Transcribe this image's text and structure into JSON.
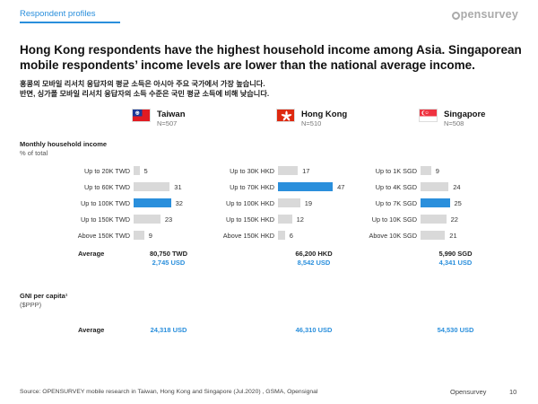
{
  "header": {
    "section_label": "Respondent profiles",
    "logo_text": "pensurvey"
  },
  "headline": "Hong Kong respondents have the highest household income among Asia. Singaporean mobile respondents’ income levels are lower than the national average income.",
  "subline": "홍콩의 모바일 리서치 응답자의 평균 소득은 아시아 주요 국가에서 가장 높습니다.\n반면, 싱가폴 모바일 리서치 응답자의 소득 수준은 국민 평균 소득에 비해 낮습니다.",
  "colors": {
    "accent": "#2a8fdc",
    "bar": "#d9d9d9"
  },
  "chart_data": {
    "type": "bar",
    "ylabel": "Monthly household income",
    "ysub": "% of total",
    "average_label": "Average",
    "gni_label": "GNI per capita¹",
    "gni_sub": "($PPP)",
    "gni_row_label": "Average",
    "series": [
      {
        "name": "Taiwan",
        "sample": "N=507",
        "flag": "taiwan-flag-icon",
        "categories": [
          "Up to 20K TWD",
          "Up to 60K TWD",
          "Up to 100K TWD",
          "Up to 150K TWD",
          "Above 150K TWD"
        ],
        "values": [
          5,
          31,
          32,
          23,
          9
        ],
        "highlight_index": 2,
        "average_local": "80,750 TWD",
        "average_usd": "2,745 USD",
        "gni": "24,318 USD"
      },
      {
        "name": "Hong Kong",
        "sample": "N=510",
        "flag": "hongkong-flag-icon",
        "categories": [
          "Up to 30K HKD",
          "Up to 70K HKD",
          "Up to 100K HKD",
          "Up to 150K HKD",
          "Above 150K HKD"
        ],
        "values": [
          17,
          47,
          19,
          12,
          6
        ],
        "highlight_index": 1,
        "average_local": "66,200 HKD",
        "average_usd": "8,542 USD",
        "gni": "46,310 USD"
      },
      {
        "name": "Singapore",
        "sample": "N=508",
        "flag": "singapore-flag-icon",
        "categories": [
          "Up to 1K SGD",
          "Up to 4K SGD",
          "Up to 7K SGD",
          "Up to 10K SGD",
          "Above 10K SGD"
        ],
        "values": [
          9,
          24,
          25,
          22,
          21
        ],
        "highlight_index": 2,
        "average_local": "5,990 SGD",
        "average_usd": "4,341 USD",
        "gni": "54,530 USD"
      }
    ]
  },
  "footer": {
    "source": "Source: OPENSURVEY mobile research in Taiwan, Hong Kong and Singapore (Jul.2020) , GSMA, Opensignal",
    "brand": "Opensurvey",
    "page": "10"
  }
}
